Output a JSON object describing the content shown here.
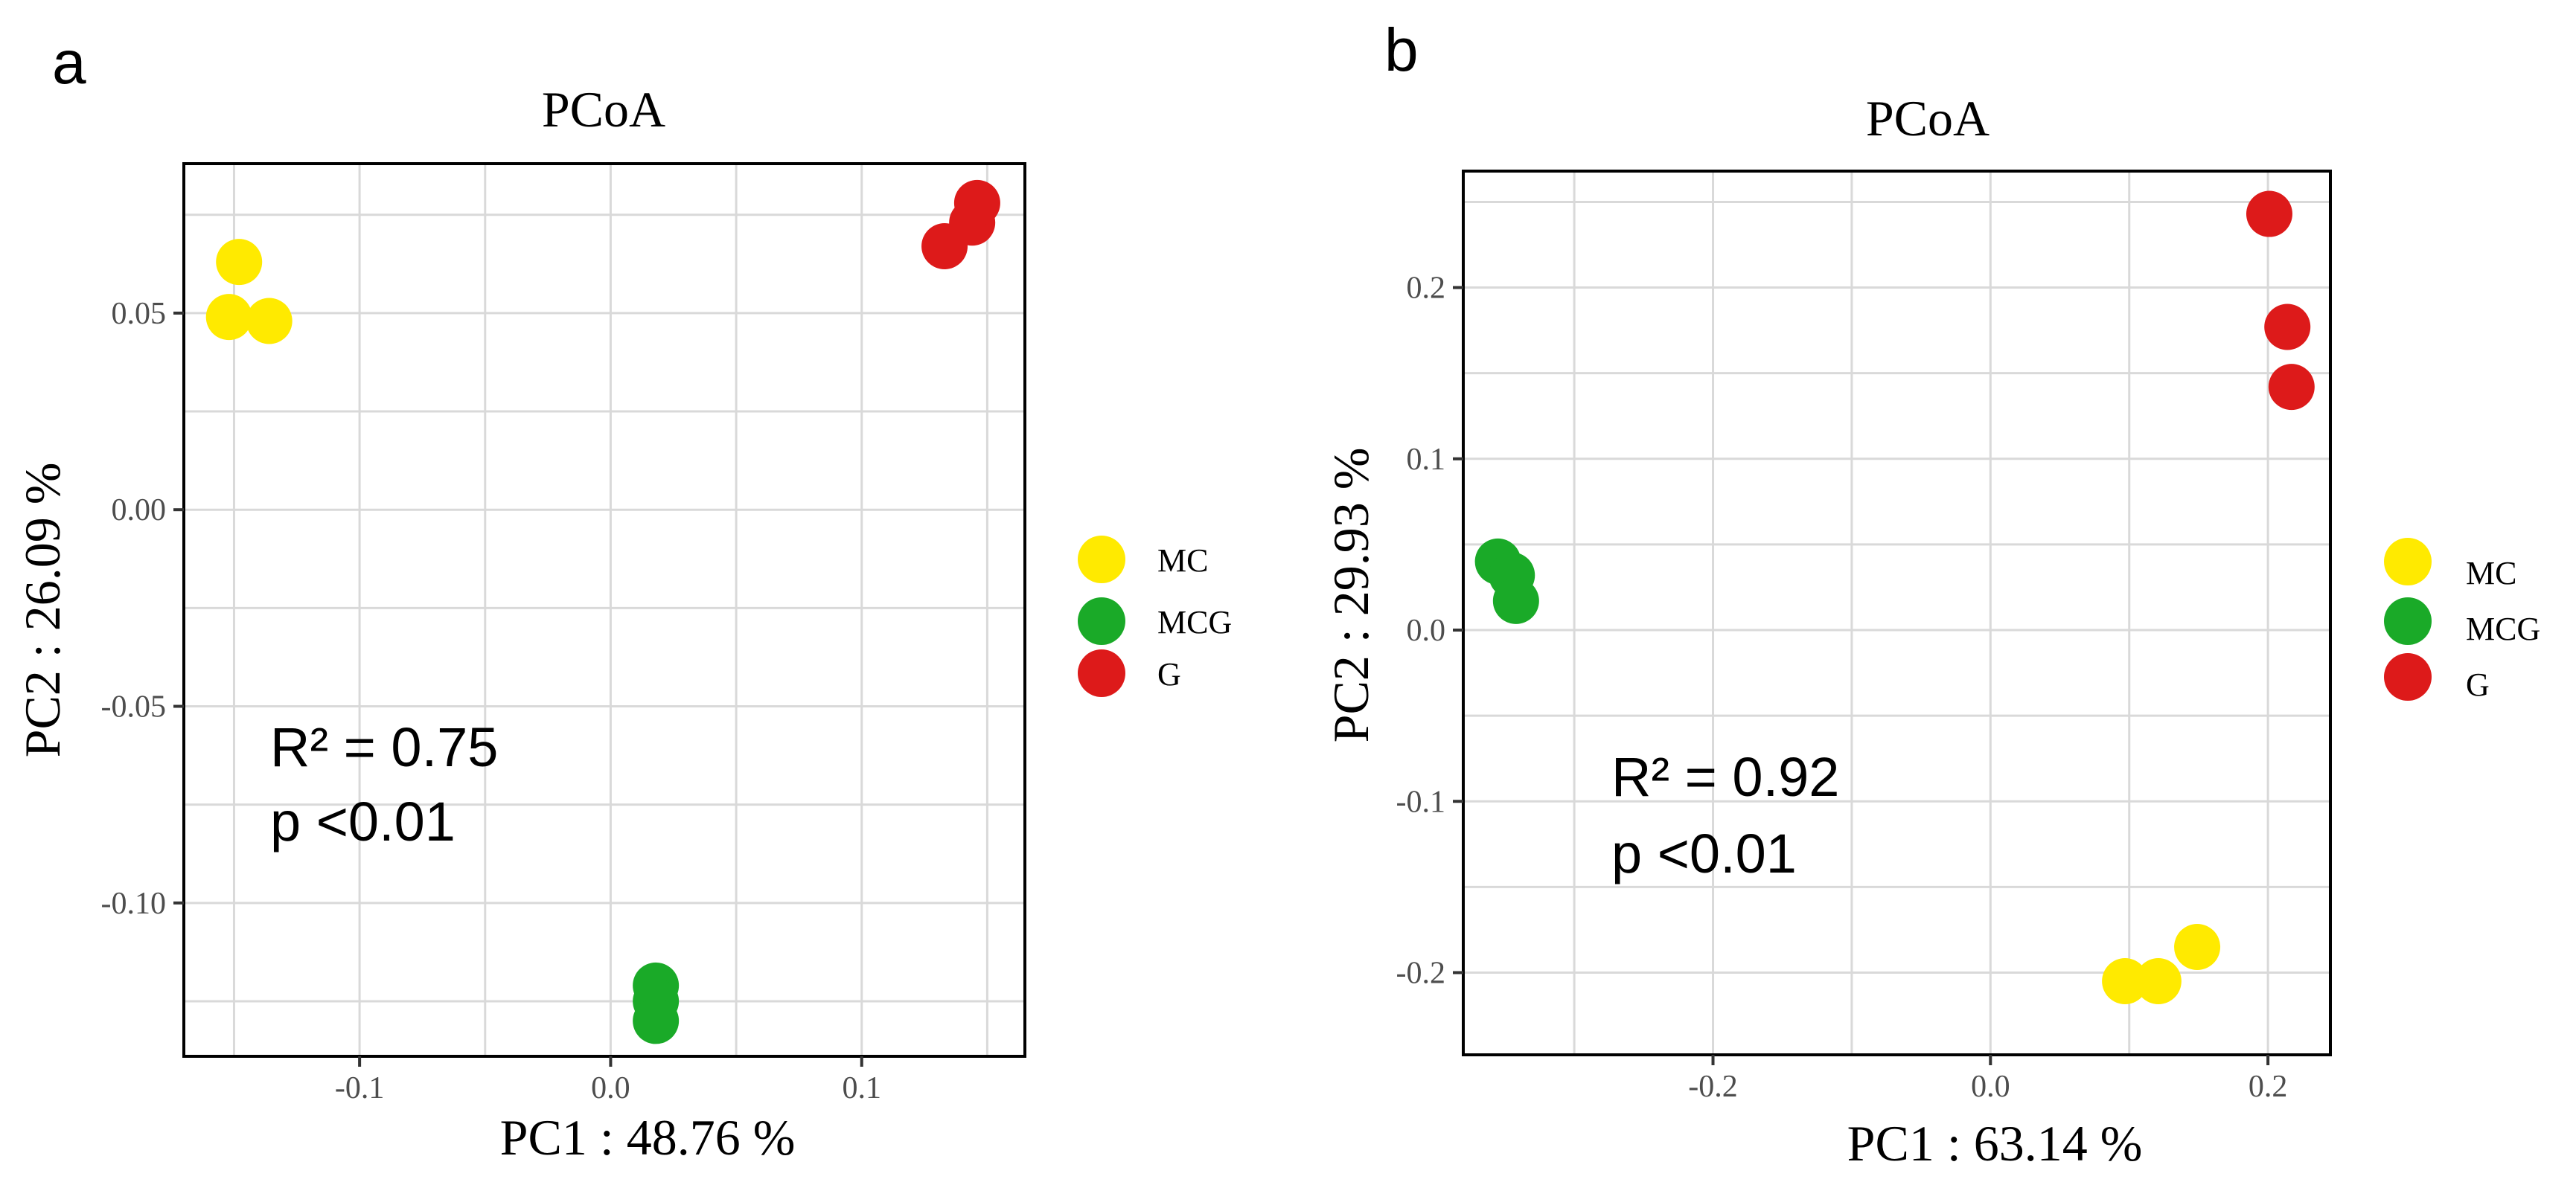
{
  "colors": {
    "MC": "#FFEA00",
    "MCG": "#1AAA28",
    "G": "#DD1A1A"
  },
  "legend": [
    "MC",
    "MCG",
    "G"
  ],
  "chart_data": [
    {
      "type": "scatter",
      "panel": "a",
      "title": "PCoA",
      "xlabel": "PC1 : 48.76 %",
      "ylabel": "PC2 : 26.09 %",
      "xlim": [
        -0.17,
        0.165
      ],
      "ylim": [
        -0.139,
        0.088
      ],
      "xticks": [
        -0.1,
        0.0,
        0.1
      ],
      "xtick_labels": [
        "-0.1",
        "0.0",
        "0.1"
      ],
      "yticks": [
        -0.1,
        -0.05,
        0.0,
        0.05
      ],
      "ytick_labels": [
        "-0.10",
        "-0.05",
        "0.00",
        "0.05"
      ],
      "x_grid_minor": [
        -0.15,
        -0.05,
        0.05,
        0.15
      ],
      "y_grid_minor": [
        -0.125,
        -0.075,
        -0.025,
        0.025,
        0.075
      ],
      "annotation": [
        "R² = 0.75",
        "p <0.01"
      ],
      "legend_labels": [
        "MC",
        "MCG",
        "G"
      ],
      "series": [
        {
          "name": "MC",
          "points": [
            [
              -0.148,
              0.063
            ],
            [
              -0.152,
              0.049
            ],
            [
              -0.136,
              0.048
            ]
          ]
        },
        {
          "name": "MCG",
          "points": [
            [
              0.018,
              -0.121
            ],
            [
              0.018,
              -0.125
            ],
            [
              0.018,
              -0.13
            ]
          ]
        },
        {
          "name": "G",
          "points": [
            [
              0.133,
              0.067
            ],
            [
              0.144,
              0.073
            ],
            [
              0.146,
              0.078
            ]
          ]
        }
      ]
    },
    {
      "type": "scatter",
      "panel": "b",
      "title": "PCoA",
      "xlabel": "PC1 : 63.14 %",
      "ylabel": "PC2 : 29.93 %",
      "xlim": [
        -0.38,
        0.245
      ],
      "ylim": [
        -0.248,
        0.268
      ],
      "xticks": [
        -0.2,
        0.0,
        0.2
      ],
      "xtick_labels": [
        "-0.2",
        "0.0",
        "0.2"
      ],
      "yticks": [
        -0.2,
        -0.1,
        0.0,
        0.1,
        0.2
      ],
      "ytick_labels": [
        "-0.2",
        "-0.1",
        "0.0",
        "0.1",
        "0.2"
      ],
      "x_grid_minor": [
        -0.3,
        -0.1,
        0.1
      ],
      "y_grid_minor": [
        -0.15,
        -0.05,
        0.05,
        0.15,
        0.25
      ],
      "annotation": [
        "R² = 0.92",
        "p <0.01"
      ],
      "legend_labels": [
        "MC",
        "MCG",
        "G"
      ],
      "series": [
        {
          "name": "MC",
          "points": [
            [
              0.097,
              -0.205
            ],
            [
              0.121,
              -0.205
            ],
            [
              0.149,
              -0.185
            ]
          ]
        },
        {
          "name": "MCG",
          "points": [
            [
              -0.355,
              0.04
            ],
            [
              -0.345,
              0.032
            ],
            [
              -0.342,
              0.017
            ]
          ]
        },
        {
          "name": "G",
          "points": [
            [
              0.201,
              0.243
            ],
            [
              0.214,
              0.177
            ],
            [
              0.217,
              0.142
            ]
          ]
        }
      ]
    }
  ]
}
